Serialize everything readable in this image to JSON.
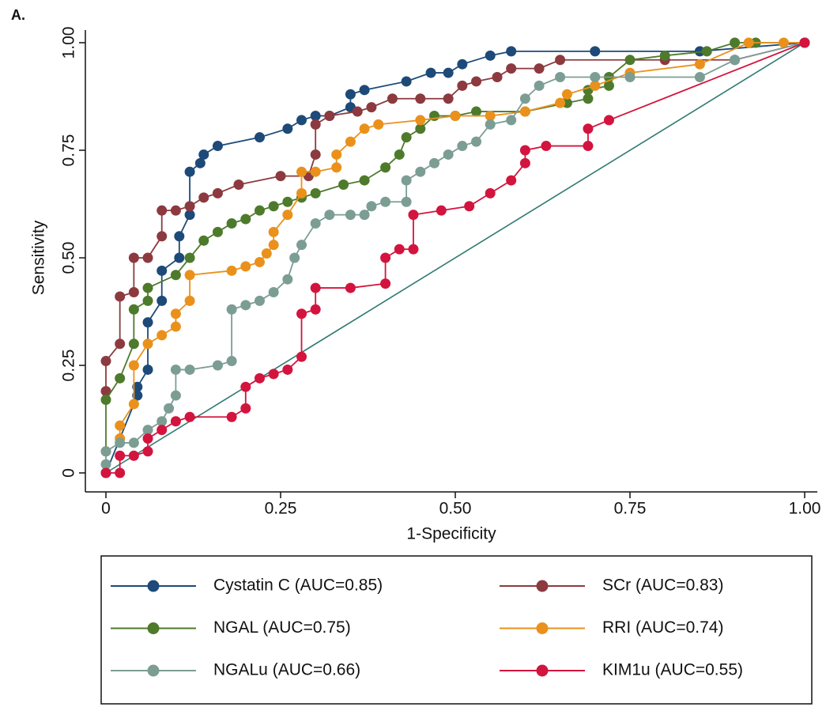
{
  "chart_data": {
    "type": "line",
    "panel_label": "A.",
    "x_label": "1-Specificity",
    "y_label": "Sensitivity",
    "xlim": [
      0,
      1
    ],
    "ylim": [
      0,
      1
    ],
    "xticks": [
      0,
      0.25,
      {
        "value": 0.5,
        "label": "0.50"
      },
      0.75,
      {
        "value": 1,
        "label": "1.00"
      }
    ],
    "yticks": [
      0,
      0.25,
      {
        "value": 0.5,
        "label": "0.50"
      },
      0.75,
      {
        "value": 1,
        "label": "1.00"
      }
    ],
    "series": [
      {
        "name": "Cystatin C (AUC=0.85)",
        "color": "#1d4a78",
        "x": [
          0,
          0.045,
          0.045,
          0.06,
          0.06,
          0.08,
          0.08,
          0.105,
          0.105,
          0.12,
          0.12,
          0.135,
          0.14,
          0.16,
          0.22,
          0.26,
          0.28,
          0.3,
          0.32,
          0.35,
          0.35,
          0.37,
          0.43,
          0.465,
          0.49,
          0.51,
          0.55,
          0.58,
          0.7,
          0.85,
          1
        ],
        "y": [
          0,
          0.18,
          0.2,
          0.24,
          0.35,
          0.4,
          0.47,
          0.5,
          0.55,
          0.6,
          0.7,
          0.72,
          0.74,
          0.76,
          0.78,
          0.8,
          0.82,
          0.83,
          0.83,
          0.85,
          0.88,
          0.89,
          0.91,
          0.93,
          0.93,
          0.95,
          0.97,
          0.98,
          0.98,
          0.98,
          1
        ]
      },
      {
        "name": "SCr (AUC=0.83)",
        "color": "#8c3a3f",
        "x": [
          0,
          0,
          0.02,
          0.02,
          0.04,
          0.04,
          0.06,
          0.08,
          0.08,
          0.1,
          0.12,
          0.14,
          0.16,
          0.19,
          0.25,
          0.29,
          0.3,
          0.3,
          0.32,
          0.36,
          0.38,
          0.41,
          0.45,
          0.49,
          0.51,
          0.53,
          0.56,
          0.58,
          0.62,
          0.65,
          0.8,
          0.9,
          1
        ],
        "y": [
          0.19,
          0.26,
          0.3,
          0.41,
          0.42,
          0.5,
          0.5,
          0.55,
          0.61,
          0.61,
          0.62,
          0.64,
          0.65,
          0.67,
          0.69,
          0.69,
          0.74,
          0.81,
          0.83,
          0.84,
          0.85,
          0.87,
          0.87,
          0.87,
          0.9,
          0.91,
          0.92,
          0.94,
          0.94,
          0.96,
          0.96,
          0.96,
          1
        ]
      },
      {
        "name": "NGAL (AUC=0.75)",
        "color": "#4e7a2c",
        "x": [
          0,
          0,
          0.02,
          0.04,
          0.04,
          0.06,
          0.06,
          0.1,
          0.12,
          0.14,
          0.16,
          0.18,
          0.2,
          0.22,
          0.24,
          0.26,
          0.28,
          0.3,
          0.34,
          0.37,
          0.4,
          0.42,
          0.43,
          0.45,
          0.47,
          0.5,
          0.53,
          0.6,
          0.66,
          0.69,
          0.69,
          0.72,
          0.72,
          0.75,
          0.8,
          0.86,
          0.9,
          0.93,
          1
        ],
        "y": [
          0.05,
          0.17,
          0.22,
          0.3,
          0.38,
          0.4,
          0.43,
          0.46,
          0.5,
          0.54,
          0.56,
          0.58,
          0.59,
          0.61,
          0.62,
          0.63,
          0.64,
          0.65,
          0.67,
          0.68,
          0.71,
          0.74,
          0.78,
          0.8,
          0.83,
          0.83,
          0.84,
          0.84,
          0.86,
          0.87,
          0.89,
          0.9,
          0.92,
          0.96,
          0.97,
          0.98,
          1,
          1,
          1
        ]
      },
      {
        "name": "RRI (AUC=0.74)",
        "color": "#ea911c",
        "x": [
          0.02,
          0.02,
          0.04,
          0.04,
          0.06,
          0.08,
          0.1,
          0.1,
          0.12,
          0.12,
          0.18,
          0.2,
          0.22,
          0.23,
          0.24,
          0.24,
          0.26,
          0.28,
          0.28,
          0.3,
          0.33,
          0.33,
          0.35,
          0.37,
          0.39,
          0.45,
          0.5,
          0.55,
          0.6,
          0.65,
          0.66,
          0.7,
          0.75,
          0.85,
          0.92,
          0.97,
          1
        ],
        "y": [
          0.08,
          0.11,
          0.16,
          0.25,
          0.3,
          0.32,
          0.34,
          0.37,
          0.4,
          0.46,
          0.47,
          0.48,
          0.49,
          0.51,
          0.53,
          0.56,
          0.6,
          0.65,
          0.7,
          0.7,
          0.71,
          0.74,
          0.77,
          0.8,
          0.81,
          0.82,
          0.83,
          0.83,
          0.84,
          0.86,
          0.88,
          0.9,
          0.93,
          0.95,
          1,
          1,
          1
        ]
      },
      {
        "name": "NGALu (AUC=0.66)",
        "color": "#7c9d94",
        "x": [
          0,
          0,
          0.02,
          0.04,
          0.06,
          0.08,
          0.09,
          0.1,
          0.1,
          0.12,
          0.16,
          0.18,
          0.18,
          0.2,
          0.22,
          0.24,
          0.26,
          0.27,
          0.28,
          0.3,
          0.32,
          0.35,
          0.37,
          0.38,
          0.4,
          0.43,
          0.43,
          0.45,
          0.47,
          0.49,
          0.51,
          0.53,
          0.55,
          0.58,
          0.6,
          0.62,
          0.65,
          0.7,
          0.75,
          0.85,
          0.9,
          1
        ],
        "y": [
          0.02,
          0.05,
          0.07,
          0.07,
          0.1,
          0.12,
          0.15,
          0.18,
          0.24,
          0.24,
          0.25,
          0.26,
          0.38,
          0.39,
          0.4,
          0.42,
          0.45,
          0.5,
          0.53,
          0.58,
          0.6,
          0.6,
          0.6,
          0.62,
          0.63,
          0.63,
          0.68,
          0.7,
          0.72,
          0.74,
          0.76,
          0.77,
          0.81,
          0.82,
          0.87,
          0.9,
          0.92,
          0.92,
          0.92,
          0.92,
          0.96,
          1
        ]
      },
      {
        "name": "KIM1u (AUC=0.55)",
        "color": "#d3143e",
        "x": [
          0,
          0.02,
          0.02,
          0.04,
          0.06,
          0.06,
          0.08,
          0.1,
          0.12,
          0.18,
          0.2,
          0.2,
          0.22,
          0.24,
          0.26,
          0.28,
          0.28,
          0.3,
          0.3,
          0.35,
          0.4,
          0.4,
          0.42,
          0.44,
          0.44,
          0.48,
          0.52,
          0.55,
          0.58,
          0.6,
          0.6,
          0.63,
          0.69,
          0.69,
          0.72,
          1
        ],
        "y": [
          0,
          0,
          0.04,
          0.04,
          0.05,
          0.08,
          0.1,
          0.12,
          0.13,
          0.13,
          0.15,
          0.2,
          0.22,
          0.23,
          0.24,
          0.27,
          0.37,
          0.38,
          0.43,
          0.43,
          0.44,
          0.5,
          0.52,
          0.52,
          0.6,
          0.61,
          0.62,
          0.65,
          0.68,
          0.72,
          0.75,
          0.76,
          0.76,
          0.8,
          0.82,
          1
        ]
      }
    ]
  }
}
